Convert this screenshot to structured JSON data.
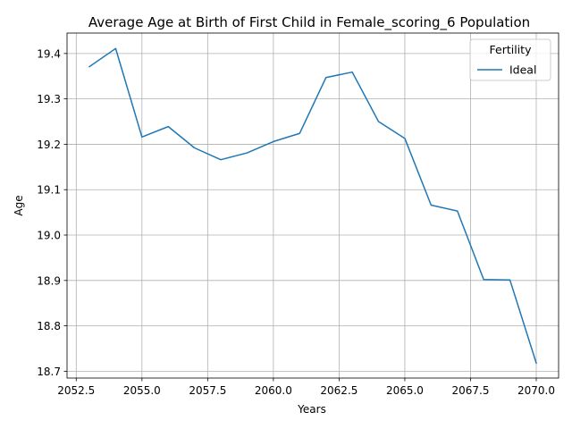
{
  "chart_data": {
    "type": "line",
    "title": "Average Age at Birth of First Child in Female_scoring_6 Population",
    "xlabel": "Years",
    "ylabel": "Age",
    "xlim": [
      2052.15,
      2070.85
    ],
    "ylim": [
      18.685,
      19.445
    ],
    "xticks": [
      2052.5,
      2055.0,
      2057.5,
      2060.0,
      2062.5,
      2065.0,
      2067.5,
      2070.0
    ],
    "xtick_labels": [
      "2052.5",
      "2055.0",
      "2057.5",
      "2060.0",
      "2062.5",
      "2065.0",
      "2067.5",
      "2070.0"
    ],
    "yticks": [
      18.7,
      18.8,
      18.9,
      19.0,
      19.1,
      19.2,
      19.3,
      19.4
    ],
    "ytick_labels": [
      "18.7",
      "18.8",
      "18.9",
      "19.0",
      "19.1",
      "19.2",
      "19.3",
      "19.4"
    ],
    "grid": true,
    "legend": {
      "title": "Fertility",
      "placement": "top-right"
    },
    "series": [
      {
        "name": "Ideal",
        "color": "#1f77b4",
        "x": [
          2053,
          2054,
          2055,
          2056,
          2057,
          2058,
          2059,
          2060,
          2061,
          2062,
          2063,
          2064,
          2065,
          2066,
          2067,
          2068,
          2069,
          2070
        ],
        "y": [
          19.371,
          19.411,
          19.216,
          19.239,
          19.192,
          19.166,
          19.181,
          19.206,
          19.224,
          19.347,
          19.359,
          19.25,
          19.213,
          19.066,
          19.053,
          18.902,
          18.901,
          18.718
        ]
      }
    ]
  }
}
